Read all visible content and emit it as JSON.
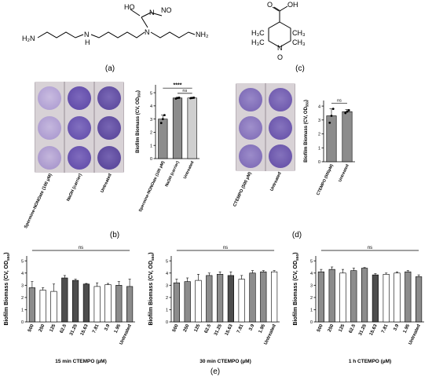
{
  "panel_labels": {
    "a": "(a)",
    "b": "(b)",
    "c": "(c)",
    "d": "(d)",
    "e": "(e)"
  },
  "structure_a": {
    "atoms": [
      "HO",
      "N",
      "NO",
      "N",
      "H₂N",
      "N",
      "H",
      "NH₂"
    ]
  },
  "structure_c": {
    "atoms": [
      "O",
      "OH",
      "H₃C",
      "CH₃",
      "H₃C",
      "CH₃",
      "N",
      "O"
    ]
  },
  "photo_b": {
    "column_labels": [
      "Spermine-NONOate (100 µM)",
      "NaOH (carrier)",
      "Untreated"
    ]
  },
  "photo_d": {
    "column_labels": [
      "CTEMPO (500 µM)",
      "Untreated"
    ]
  },
  "colors": {
    "dark_bar": "#4d4d4d",
    "mid_bar": "#8c8c8c",
    "light_bar": "#cfcfcf",
    "white_bar": "#ffffff",
    "well_light": "#b7a8d6",
    "well_dark": "#6a54b0"
  },
  "chart_data": [
    {
      "id": "b",
      "type": "bar",
      "categories": [
        "Spermine-NONOate (100 µM)",
        "NaOH (carrier)",
        "Untreated"
      ],
      "values": [
        3.0,
        4.6,
        4.6
      ],
      "errors": [
        0.3,
        0.05,
        0.05
      ],
      "points": [
        [
          2.7,
          3.0,
          3.3
        ],
        [
          4.55,
          4.6,
          4.62
        ],
        [
          4.58,
          4.6,
          4.62
        ]
      ],
      "ylabel": "Biofilm Biomass (CV, OD550)",
      "yticks": [
        0,
        1,
        2,
        3,
        4,
        5
      ],
      "ylim": [
        0,
        5.6
      ],
      "annotations": [
        "****",
        "ns"
      ]
    },
    {
      "id": "d",
      "type": "bar",
      "categories": [
        "CTEMPO (500µM)",
        "Untreated"
      ],
      "values": [
        3.3,
        3.6
      ],
      "errors": [
        0.5,
        0.15
      ],
      "points": [
        [
          2.8,
          3.3,
          3.8
        ],
        [
          3.5,
          3.6,
          3.7
        ]
      ],
      "ylabel": "Biofilm Biomass (CV, OD550)",
      "yticks": [
        0,
        1,
        2,
        3,
        4
      ],
      "ylim": [
        0,
        4.4
      ],
      "annotations": [
        "ns"
      ]
    },
    {
      "id": "e1",
      "type": "bar",
      "categories": [
        "500",
        "250",
        "125",
        "62.5",
        "31.25",
        "15.63",
        "7.81",
        "3.9",
        "1.95",
        "Untreated"
      ],
      "values": [
        2.8,
        2.6,
        2.5,
        3.6,
        3.4,
        3.1,
        2.9,
        3.05,
        3.0,
        2.9
      ],
      "errors": [
        0.5,
        0.2,
        0.6,
        0.2,
        0.1,
        0.05,
        0.3,
        0.1,
        0.3,
        0.6
      ],
      "xlabel": "15 min CTEMPO (µM)",
      "ylabel": "Biofilm Biomass (CV, OD550)",
      "yticks": [
        0,
        1,
        2,
        3,
        4,
        5
      ],
      "ylim": [
        0,
        5.4
      ],
      "annotations": [
        "ns"
      ]
    },
    {
      "id": "e2",
      "type": "bar",
      "categories": [
        "500",
        "250",
        "125",
        "62.5",
        "31.25",
        "15.63",
        "7.81",
        "3.9",
        "1.95",
        "Untreated"
      ],
      "values": [
        3.2,
        3.3,
        3.4,
        3.8,
        3.9,
        3.8,
        3.5,
        4.0,
        4.1,
        4.1
      ],
      "errors": [
        0.3,
        0.3,
        0.5,
        0.2,
        0.2,
        0.3,
        0.3,
        0.2,
        0.1,
        0.1
      ],
      "xlabel": "30 min CTEMPO (µM)",
      "ylabel": "Biofilm Biomass (CV, OD550)",
      "yticks": [
        0,
        1,
        2,
        3,
        4,
        5
      ],
      "ylim": [
        0,
        5.4
      ],
      "annotations": [
        "ns"
      ]
    },
    {
      "id": "e3",
      "type": "bar",
      "categories": [
        "500",
        "250",
        "125",
        "62.5",
        "31.25",
        "15.63",
        "7.81",
        "3.9",
        "1.95",
        "Untreated"
      ],
      "values": [
        4.1,
        4.3,
        4.0,
        4.2,
        4.4,
        3.85,
        3.9,
        4.0,
        4.1,
        3.7
      ],
      "errors": [
        0.2,
        0.2,
        0.3,
        0.2,
        0.05,
        0.1,
        0.1,
        0.1,
        0.1,
        0.15
      ],
      "xlabel": "1 h CTEMPO (µM)",
      "ylabel": "Biofilm Biomass (CV, OD550)",
      "yticks": [
        0,
        1,
        2,
        3,
        4,
        5
      ],
      "ylim": [
        0,
        5.4
      ],
      "annotations": [
        "ns"
      ]
    }
  ]
}
